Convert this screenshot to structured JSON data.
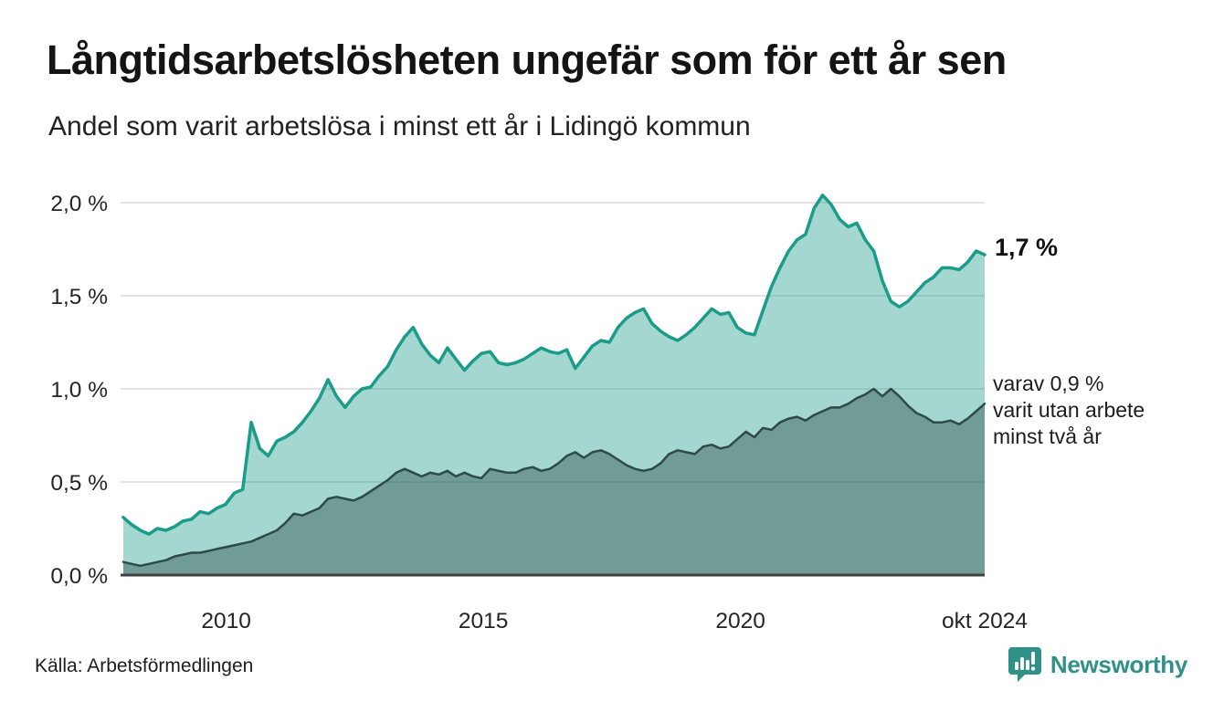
{
  "header": {
    "title": "Långtidsarbetslösheten ungefär som för ett år sen",
    "subtitle": "Andel som varit arbetslösa i minst ett år i Lidingö kommun"
  },
  "annotations": {
    "latest_total": "1,7 %",
    "note_lines": [
      "varav 0,9 %",
      "varit utan arbete",
      "minst två år"
    ]
  },
  "footer": {
    "source": "Källa: Arbetsförmedlingen",
    "brand": "Newsworthy"
  },
  "colors": {
    "accent_teal": "#1a9c89",
    "light_area_fill": "rgba(26,156,137,0.40)",
    "dark_line": "#2d4a46",
    "dark_area_fill": "rgba(45,74,70,0.42)",
    "gridline": "#dadada",
    "axis_line": "#3f3f3f",
    "brand_teal": "#2f9187"
  },
  "chart_data": {
    "type": "area",
    "title": "Långtidsarbetslösheten ungefär som för ett år sen",
    "subtitle": "Andel som varit arbetslösa i minst ett år i Lidingö kommun",
    "x_start": 2008.0,
    "x_end": 2024.75,
    "x_tick_labels": [
      "2010",
      "2015",
      "2020",
      "okt 2024"
    ],
    "x_tick_values": [
      2010,
      2015,
      2020,
      2024.75
    ],
    "y_tick_labels": [
      "0,0 %",
      "0,5 %",
      "1,0 %",
      "1,5 %",
      "2,0 %"
    ],
    "y_tick_values": [
      0,
      0.5,
      1.0,
      1.5,
      2.0
    ],
    "ylim": [
      0,
      2.15
    ],
    "grid": true,
    "legend": "none",
    "unit": "%",
    "series": [
      {
        "name": "Andel som varit arbetslösa i minst ett år",
        "end_label": "1,7 %",
        "end_value": 1.7,
        "color": "#1a9c89",
        "fill": "rgba(26,156,137,0.40)",
        "stroke_width": 3.5,
        "values": [
          0.31,
          0.27,
          0.24,
          0.22,
          0.25,
          0.24,
          0.26,
          0.29,
          0.3,
          0.34,
          0.33,
          0.36,
          0.38,
          0.44,
          0.46,
          0.82,
          0.68,
          0.64,
          0.72,
          0.74,
          0.77,
          0.82,
          0.88,
          0.95,
          1.05,
          0.96,
          0.9,
          0.96,
          1.0,
          1.01,
          1.07,
          1.12,
          1.21,
          1.28,
          1.33,
          1.24,
          1.18,
          1.14,
          1.22,
          1.16,
          1.1,
          1.15,
          1.19,
          1.2,
          1.14,
          1.13,
          1.14,
          1.16,
          1.19,
          1.22,
          1.2,
          1.19,
          1.21,
          1.11,
          1.17,
          1.23,
          1.26,
          1.25,
          1.33,
          1.38,
          1.41,
          1.43,
          1.35,
          1.31,
          1.28,
          1.26,
          1.29,
          1.33,
          1.38,
          1.43,
          1.4,
          1.41,
          1.33,
          1.3,
          1.29,
          1.42,
          1.55,
          1.65,
          1.74,
          1.8,
          1.83,
          1.97,
          2.04,
          1.99,
          1.91,
          1.87,
          1.89,
          1.8,
          1.74,
          1.58,
          1.47,
          1.44,
          1.47,
          1.52,
          1.57,
          1.6,
          1.65,
          1.65,
          1.64,
          1.68,
          1.74,
          1.72
        ]
      },
      {
        "name": "varav varit utan arbete minst två år",
        "end_label": "varav 0,9 % varit utan arbete minst två år",
        "end_value": 0.9,
        "color": "#2d4a46",
        "fill": "rgba(45,74,70,0.42)",
        "stroke_width": 2.5,
        "values": [
          0.07,
          0.06,
          0.05,
          0.06,
          0.07,
          0.08,
          0.1,
          0.11,
          0.12,
          0.12,
          0.13,
          0.14,
          0.15,
          0.16,
          0.17,
          0.18,
          0.2,
          0.22,
          0.24,
          0.28,
          0.33,
          0.32,
          0.34,
          0.36,
          0.41,
          0.42,
          0.41,
          0.4,
          0.42,
          0.45,
          0.48,
          0.51,
          0.55,
          0.57,
          0.55,
          0.53,
          0.55,
          0.54,
          0.56,
          0.53,
          0.55,
          0.53,
          0.52,
          0.57,
          0.56,
          0.55,
          0.55,
          0.57,
          0.58,
          0.56,
          0.57,
          0.6,
          0.64,
          0.66,
          0.63,
          0.66,
          0.67,
          0.65,
          0.62,
          0.59,
          0.57,
          0.56,
          0.57,
          0.6,
          0.65,
          0.67,
          0.66,
          0.65,
          0.69,
          0.7,
          0.68,
          0.69,
          0.73,
          0.77,
          0.74,
          0.79,
          0.78,
          0.82,
          0.84,
          0.85,
          0.83,
          0.86,
          0.88,
          0.9,
          0.9,
          0.92,
          0.95,
          0.97,
          1.0,
          0.96,
          1.0,
          0.96,
          0.91,
          0.87,
          0.85,
          0.82,
          0.82,
          0.83,
          0.81,
          0.84,
          0.88,
          0.92
        ]
      }
    ]
  }
}
